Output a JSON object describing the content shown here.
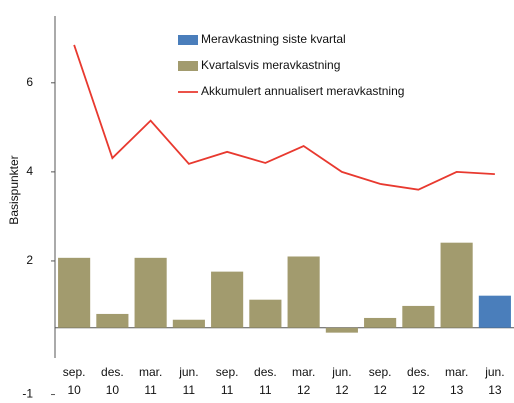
{
  "chart_data": {
    "type": "bar_line",
    "y_label": "Basispunkter",
    "categories": [
      [
        "sep.",
        "10"
      ],
      [
        "des.",
        "10"
      ],
      [
        "mar.",
        "11"
      ],
      [
        "jun.",
        "11"
      ],
      [
        "sep.",
        "11"
      ],
      [
        "des.",
        "11"
      ],
      [
        "mar.",
        "12"
      ],
      [
        "jun.",
        "12"
      ],
      [
        "sep.",
        "12"
      ],
      [
        "des.",
        "12"
      ],
      [
        "mar.",
        "13"
      ],
      [
        "jun.",
        "13"
      ]
    ],
    "series": [
      {
        "name": "Meravkastning siste kvartal",
        "type": "bar",
        "axis": "y2",
        "color": "#4a7ebb",
        "values": [
          null,
          null,
          null,
          null,
          null,
          null,
          null,
          null,
          null,
          null,
          null,
          0.72
        ]
      },
      {
        "name": "Kvartalsvis meravkastning",
        "type": "bar",
        "axis": "y2",
        "color": "#a29b6e",
        "values": [
          1.57,
          0.31,
          1.57,
          0.18,
          1.26,
          0.63,
          1.6,
          -0.11,
          0.22,
          0.49,
          1.91,
          null
        ]
      },
      {
        "name": "Akkumulert annualisert meravkastning",
        "type": "line",
        "color": "#e8392f",
        "values": [
          6.85,
          4.31,
          5.15,
          4.18,
          4.45,
          4.2,
          4.58,
          4.0,
          3.73,
          3.6,
          4.0,
          3.95
        ]
      }
    ],
    "ylim": [
      -1.1,
      7.5
    ],
    "yticks": [
      -1,
      2,
      4,
      6
    ],
    "y2lim": [
      -1.6,
      7.0
    ]
  }
}
